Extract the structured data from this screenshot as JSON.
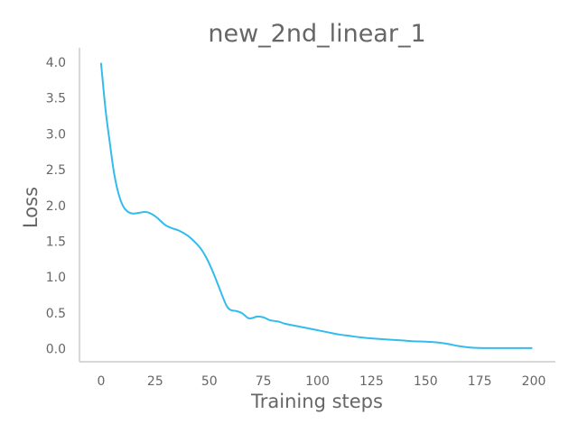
{
  "chart_data": {
    "type": "line",
    "title": "new_2nd_linear_1",
    "xlabel": "Training steps",
    "ylabel": "Loss",
    "xlim": [
      -10,
      210
    ],
    "ylim": [
      -0.18,
      4.2
    ],
    "xticks": [
      0,
      25,
      50,
      75,
      100,
      125,
      150,
      175,
      200
    ],
    "yticks": [
      0.0,
      0.5,
      1.0,
      1.5,
      2.0,
      2.5,
      3.0,
      3.5,
      4.0
    ],
    "ytick_labels": [
      "0.0",
      "0.5",
      "1.0",
      "1.5",
      "2.0",
      "2.5",
      "3.0",
      "3.5",
      "4.0"
    ],
    "grid": false,
    "series_color": "#33bbee",
    "series": [
      {
        "name": "",
        "x": [
          0,
          2,
          4,
          6,
          8,
          10,
          12,
          14,
          16,
          18,
          20,
          22,
          25,
          28,
          30,
          33,
          36,
          40,
          43,
          46,
          49,
          52,
          55,
          58,
          60,
          62,
          65,
          68,
          70,
          72,
          75,
          78,
          82,
          85,
          90,
          95,
          100,
          105,
          110,
          115,
          120,
          125,
          130,
          135,
          140,
          145,
          150,
          155,
          160,
          165,
          170,
          175,
          180,
          185,
          190,
          195,
          199
        ],
        "values": [
          3.98,
          3.35,
          2.88,
          2.45,
          2.17,
          2.0,
          1.92,
          1.89,
          1.89,
          1.9,
          1.91,
          1.9,
          1.85,
          1.77,
          1.72,
          1.68,
          1.65,
          1.58,
          1.5,
          1.4,
          1.25,
          1.05,
          0.82,
          0.6,
          0.54,
          0.53,
          0.5,
          0.43,
          0.43,
          0.45,
          0.44,
          0.4,
          0.38,
          0.35,
          0.32,
          0.29,
          0.26,
          0.23,
          0.2,
          0.18,
          0.16,
          0.145,
          0.135,
          0.125,
          0.115,
          0.105,
          0.1,
          0.09,
          0.07,
          0.04,
          0.02,
          0.012,
          0.01,
          0.01,
          0.01,
          0.01,
          0.01
        ]
      }
    ]
  }
}
